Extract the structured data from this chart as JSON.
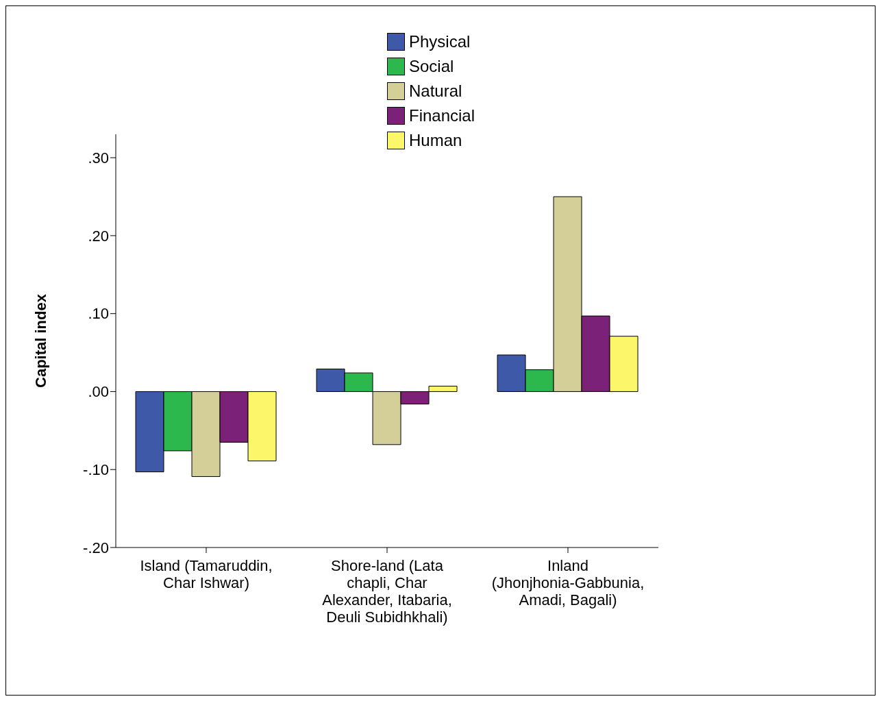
{
  "chart_data": {
    "type": "bar",
    "ylabel": "Capital index",
    "categories": [
      "Island (Tamaruddin, Char Ishwar)",
      "Shore-land (Lata chapli, Char Alexander, Itabaria, Deuli Subidhkhali)",
      "Inland (Jhonjhonia-Gabbunia, Amadi, Bagali)"
    ],
    "series": [
      {
        "name": "Physical",
        "color": "#3e59a8",
        "values": [
          -0.103,
          0.029,
          0.047
        ]
      },
      {
        "name": "Social",
        "color": "#2db84d",
        "values": [
          -0.076,
          0.024,
          0.028
        ]
      },
      {
        "name": "Natural",
        "color": "#d4cf98",
        "values": [
          -0.109,
          -0.068,
          0.25
        ]
      },
      {
        "name": "Financial",
        "color": "#7b2177",
        "values": [
          -0.065,
          -0.016,
          0.097
        ]
      },
      {
        "name": "Human",
        "color": "#fbf66a",
        "values": [
          -0.089,
          0.007,
          0.071
        ]
      }
    ],
    "ylim": [
      -0.2,
      0.33
    ],
    "yticks": [
      {
        "value": -0.2,
        "label": "-.20"
      },
      {
        "value": -0.1,
        "label": "-.10"
      },
      {
        "value": 0,
        "label": ".00"
      },
      {
        "value": 0.1,
        "label": ".10"
      },
      {
        "value": 0.2,
        "label": ".20"
      },
      {
        "value": 0.3,
        "label": ".30"
      }
    ],
    "legend": "top",
    "grid": false
  }
}
